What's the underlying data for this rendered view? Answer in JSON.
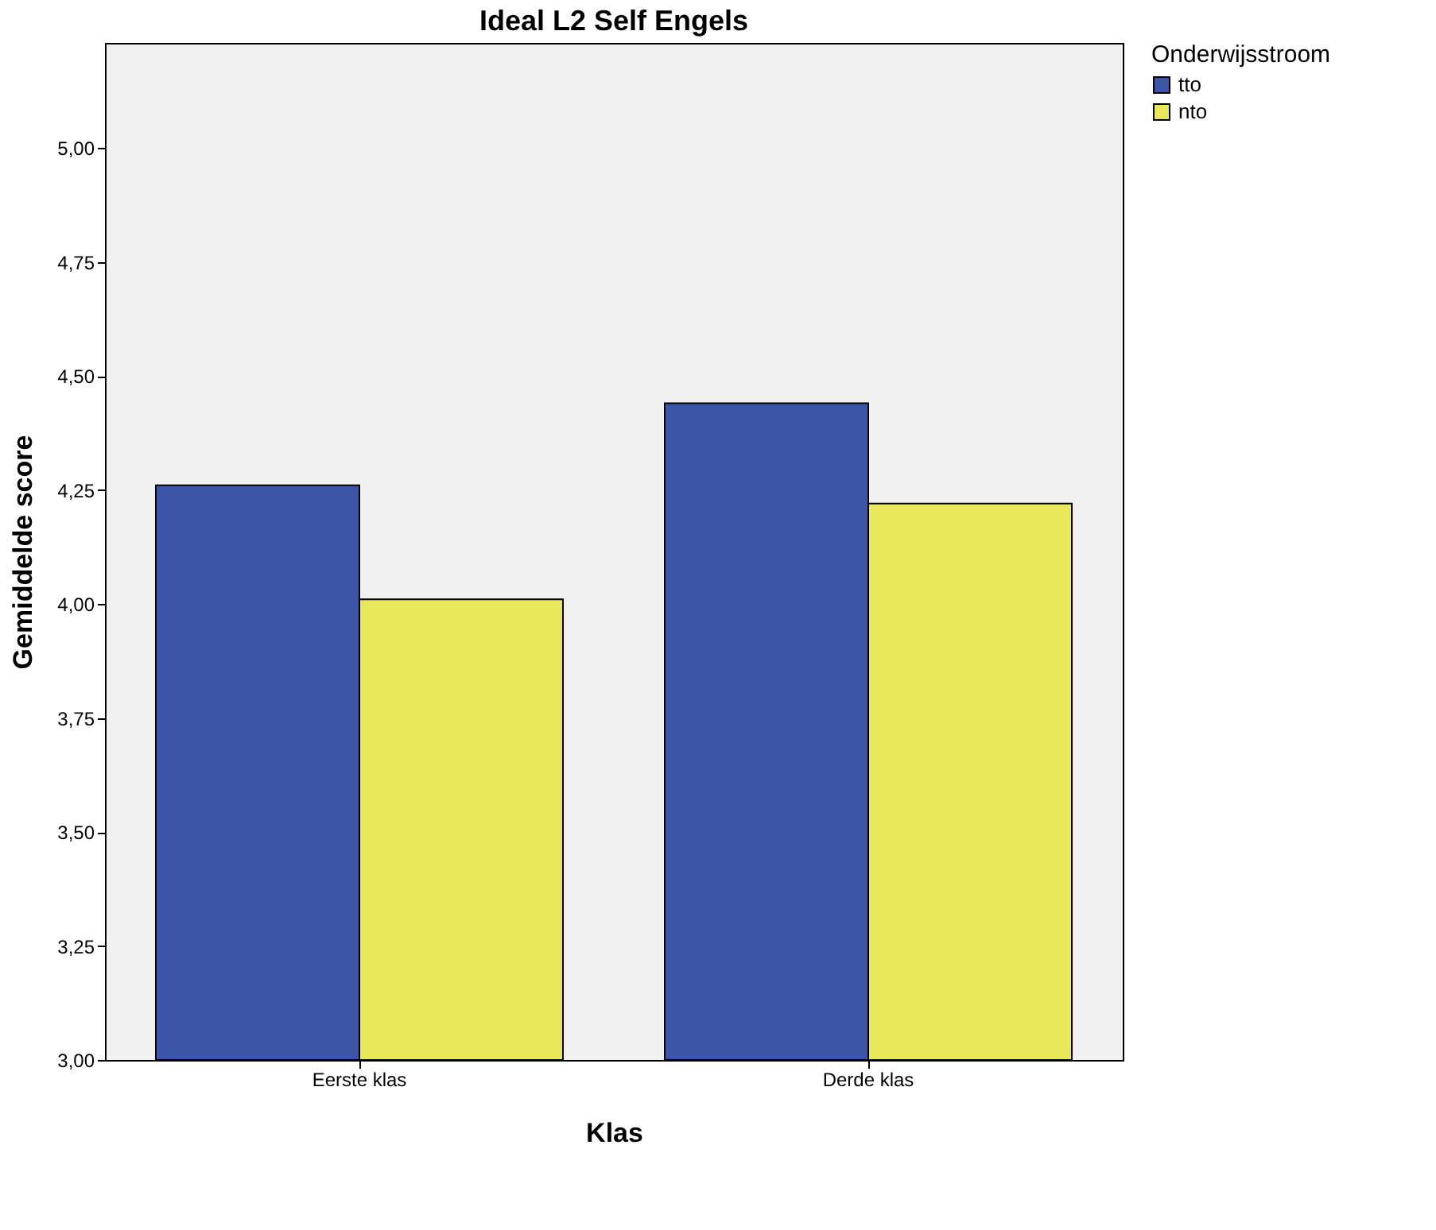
{
  "chart_data": {
    "type": "bar",
    "title": "Ideal L2 Self Engels",
    "xlabel": "Klas",
    "ylabel": "Gemiddelde score",
    "legend_title": "Onderwijsstroom",
    "categories": [
      "Eerste klas",
      "Derde klas"
    ],
    "series": [
      {
        "name": "tto",
        "color": "#3d55a8",
        "values": [
          4.26,
          4.44
        ]
      },
      {
        "name": "nto",
        "color": "#e8e85a",
        "values": [
          4.01,
          4.22
        ]
      }
    ],
    "ylim": [
      3,
      5.23
    ],
    "yticks": [
      {
        "value": 3,
        "label": "3,00"
      },
      {
        "value": 3.25,
        "label": "3,25"
      },
      {
        "value": 3.5,
        "label": "3,50"
      },
      {
        "value": 3.75,
        "label": "3,75"
      },
      {
        "value": 4,
        "label": "4,00"
      },
      {
        "value": 4.25,
        "label": "4,25"
      },
      {
        "value": 4.5,
        "label": "4,50"
      },
      {
        "value": 4.75,
        "label": "4,75"
      },
      {
        "value": 5,
        "label": "5,00"
      }
    ],
    "grid": false,
    "legend": "top right"
  }
}
